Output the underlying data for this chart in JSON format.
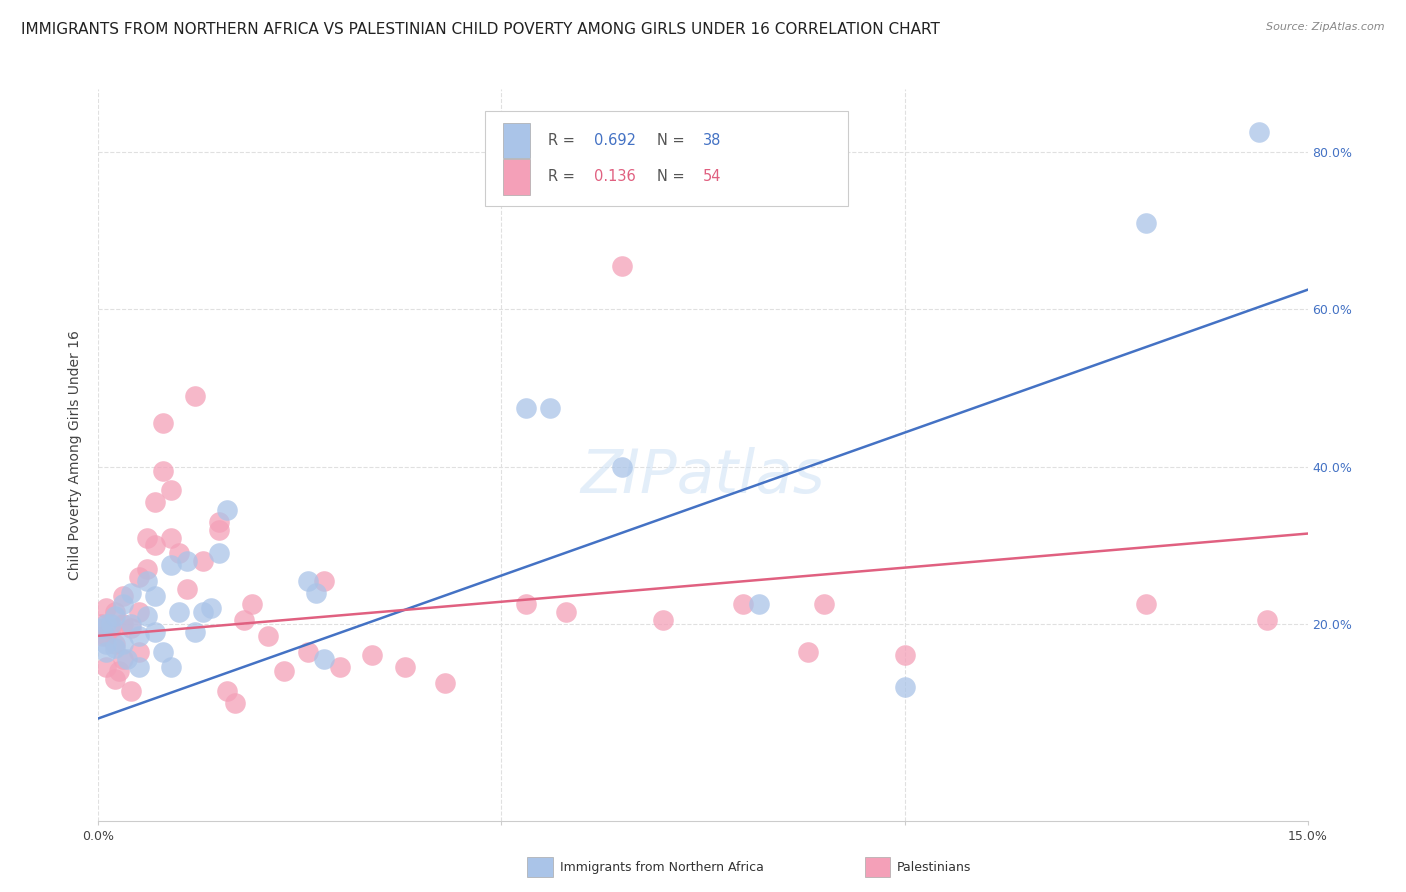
{
  "title": "IMMIGRANTS FROM NORTHERN AFRICA VS PALESTINIAN CHILD POVERTY AMONG GIRLS UNDER 16 CORRELATION CHART",
  "source": "Source: ZipAtlas.com",
  "ylabel": "Child Poverty Among Girls Under 16",
  "xlim": [
    0.0,
    0.15
  ],
  "ylim": [
    -0.05,
    0.88
  ],
  "background_color": "#ffffff",
  "grid_color": "#e0e0e0",
  "blue_color": "#aac4e8",
  "pink_color": "#f4a0b8",
  "blue_line_color": "#4472c4",
  "pink_line_color": "#e06080",
  "legend_R1": "0.692",
  "legend_N1": "38",
  "legend_R2": "0.136",
  "legend_N2": "54",
  "legend_label1": "Immigrants from Northern Africa",
  "legend_label2": "Palestinians",
  "blue_line_x0": 0.0,
  "blue_line_y0": 0.08,
  "blue_line_x1": 0.15,
  "blue_line_y1": 0.625,
  "pink_line_x0": 0.0,
  "pink_line_y0": 0.185,
  "pink_line_x1": 0.15,
  "pink_line_y1": 0.315,
  "blue_scatter_x": [
    0.0005,
    0.001,
    0.001,
    0.001,
    0.0015,
    0.002,
    0.002,
    0.003,
    0.003,
    0.0035,
    0.004,
    0.004,
    0.005,
    0.005,
    0.006,
    0.006,
    0.007,
    0.007,
    0.008,
    0.009,
    0.009,
    0.01,
    0.011,
    0.012,
    0.013,
    0.014,
    0.015,
    0.016,
    0.026,
    0.027,
    0.028,
    0.053,
    0.056,
    0.065,
    0.082,
    0.1,
    0.13,
    0.144
  ],
  "blue_scatter_y": [
    0.195,
    0.2,
    0.175,
    0.165,
    0.2,
    0.21,
    0.17,
    0.225,
    0.175,
    0.155,
    0.2,
    0.24,
    0.185,
    0.145,
    0.21,
    0.255,
    0.235,
    0.19,
    0.165,
    0.145,
    0.275,
    0.215,
    0.28,
    0.19,
    0.215,
    0.22,
    0.29,
    0.345,
    0.255,
    0.24,
    0.155,
    0.475,
    0.475,
    0.4,
    0.225,
    0.12,
    0.71,
    0.825
  ],
  "pink_scatter_x": [
    0.0003,
    0.0005,
    0.001,
    0.001,
    0.001,
    0.0015,
    0.002,
    0.002,
    0.002,
    0.0025,
    0.003,
    0.003,
    0.003,
    0.004,
    0.004,
    0.005,
    0.005,
    0.005,
    0.006,
    0.006,
    0.007,
    0.007,
    0.008,
    0.008,
    0.009,
    0.009,
    0.01,
    0.011,
    0.012,
    0.013,
    0.015,
    0.015,
    0.016,
    0.017,
    0.018,
    0.019,
    0.021,
    0.023,
    0.026,
    0.028,
    0.03,
    0.034,
    0.038,
    0.043,
    0.053,
    0.058,
    0.065,
    0.07,
    0.08,
    0.088,
    0.09,
    0.1,
    0.13,
    0.145
  ],
  "pink_scatter_y": [
    0.2,
    0.185,
    0.22,
    0.185,
    0.145,
    0.195,
    0.215,
    0.175,
    0.13,
    0.14,
    0.235,
    0.2,
    0.155,
    0.195,
    0.115,
    0.26,
    0.215,
    0.165,
    0.31,
    0.27,
    0.355,
    0.3,
    0.455,
    0.395,
    0.37,
    0.31,
    0.29,
    0.245,
    0.49,
    0.28,
    0.33,
    0.32,
    0.115,
    0.1,
    0.205,
    0.225,
    0.185,
    0.14,
    0.165,
    0.255,
    0.145,
    0.16,
    0.145,
    0.125,
    0.225,
    0.215,
    0.655,
    0.205,
    0.225,
    0.165,
    0.225,
    0.16,
    0.225,
    0.205
  ],
  "watermark_text": "ZIPatlas",
  "title_fontsize": 11,
  "axis_label_fontsize": 10,
  "tick_fontsize": 9,
  "source_fontsize": 8
}
